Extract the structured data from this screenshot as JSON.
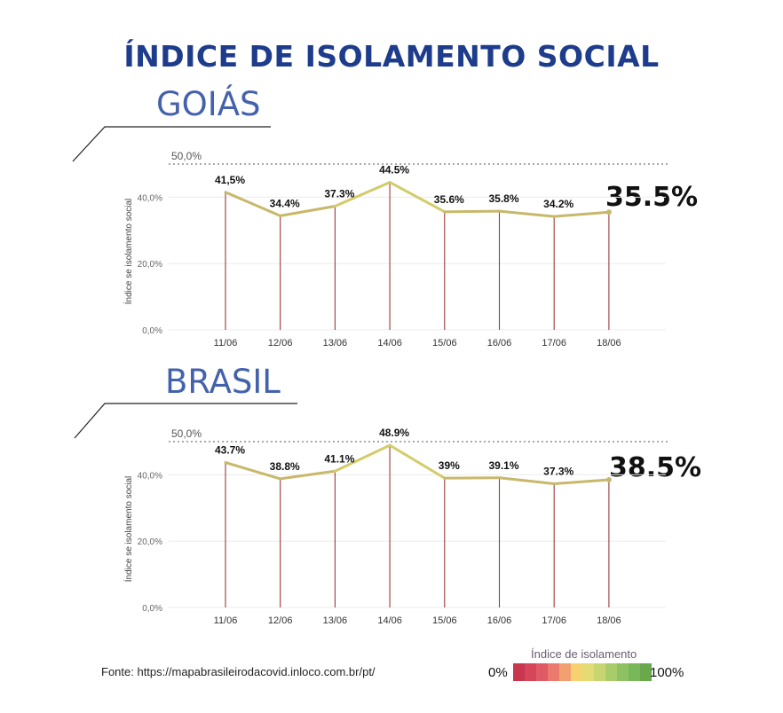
{
  "title": "ÍNDICE DE ISOLAMENTO SOCIAL",
  "colors": {
    "title": "#1e3c8c",
    "region": "#4462ac",
    "line": "#c8b86a",
    "line_peak": "#d8d870",
    "stem": "#9a3a3a"
  },
  "chart_data": [
    {
      "type": "line",
      "region": "GOIÁS",
      "big_value": "35.5%",
      "ylabel": "Índice se isolamento social",
      "ylim": [
        0,
        50
      ],
      "y_ticks": [
        "0,0%",
        "20,0%",
        "40,0%"
      ],
      "top_line_label": "50,0%",
      "categories": [
        "11/06",
        "12/06",
        "13/06",
        "14/06",
        "15/06",
        "16/06",
        "17/06",
        "18/06"
      ],
      "values": [
        41.5,
        34.4,
        37.3,
        44.5,
        35.6,
        35.8,
        34.2,
        35.5
      ],
      "data_labels": [
        "41,5%",
        "34.4%",
        "37.3%",
        "44.5%",
        "35.6%",
        "35.8%",
        "34.2%",
        ""
      ]
    },
    {
      "type": "line",
      "region": "BRASIL",
      "big_value": "38.5%",
      "ylabel": "Índice se isolamento social",
      "ylim": [
        0,
        50
      ],
      "y_ticks": [
        "0,0%",
        "20,0%",
        "40,0%"
      ],
      "top_line_label": "50,0%",
      "categories": [
        "11/06",
        "12/06",
        "13/06",
        "14/06",
        "15/06",
        "16/06",
        "17/06",
        "18/06"
      ],
      "values": [
        43.7,
        38.8,
        41.1,
        48.9,
        39.0,
        39.1,
        37.3,
        38.5
      ],
      "data_labels": [
        "43.7%",
        "38.8%",
        "41.1%",
        "48.9%",
        "39%",
        "39.1%",
        "37.3%",
        ""
      ]
    }
  ],
  "source": "Fonte: https://mapabrasileirodacovid.inloco.com.br/pt/",
  "legend": {
    "title": "Índice de isolamento",
    "min_label": "0%",
    "max_label": "100%",
    "colors": [
      "#c8374e",
      "#d6455a",
      "#e05a66",
      "#ea7a6e",
      "#f3a070",
      "#f7d070",
      "#e3dc74",
      "#c8d672",
      "#a8cc6a",
      "#8cc262",
      "#78b858",
      "#6aa84c"
    ]
  }
}
